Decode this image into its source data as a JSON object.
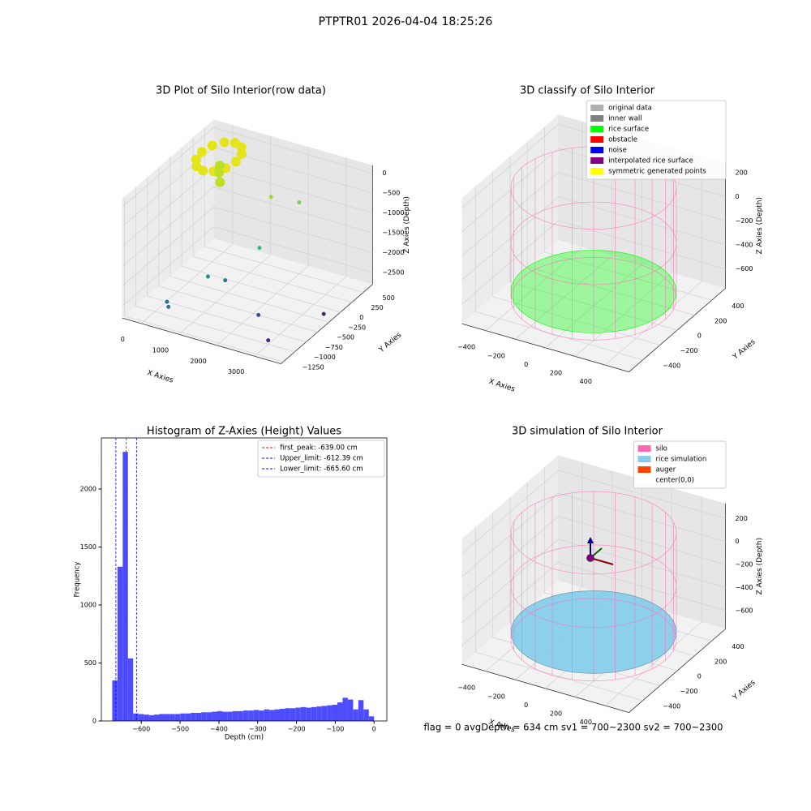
{
  "title": "PTPTR01 2026-04-04 18:25:26",
  "status_text": "flag = 0     avgDepth = 634 cm  sv1 = 700~2300  sv2 = 700~2300",
  "chart_data": [
    {
      "type": "scatter3d",
      "title": "3D Plot of Silo Interior(row data)",
      "xlabel": "X Axies",
      "ylabel": "Y Axies",
      "zlabel": "Z Axies (Depth)",
      "xlim": [
        -500,
        3700
      ],
      "ylim": [
        -1300,
        700
      ],
      "zlim": [
        -2800,
        200
      ],
      "xticks": [
        0,
        1000,
        2000,
        3000
      ],
      "yticks": [
        {
          "value": -1250,
          "label": "−1250"
        },
        {
          "value": -1000,
          "label": "−1000"
        },
        {
          "value": -750,
          "label": "−750"
        },
        {
          "value": -500,
          "label": "−500"
        },
        {
          "value": -250,
          "label": "−250"
        },
        0,
        250,
        500
      ],
      "zticks": [
        {
          "value": -2500,
          "label": "−2500"
        },
        {
          "value": -2000,
          "label": "−2000"
        },
        {
          "value": -1500,
          "label": "−1500"
        },
        {
          "value": -1000,
          "label": "−1000"
        },
        {
          "value": -500,
          "label": "−500"
        },
        0
      ],
      "x": [
        450,
        390,
        225,
        0,
        -225,
        -390,
        -450,
        -390,
        -225,
        0,
        225,
        390,
        0,
        150,
        -100,
        2000,
        1500,
        1800,
        800,
        1500,
        200,
        300,
        2500,
        3000,
        3500
      ],
      "y": [
        400,
        575,
        703,
        750,
        703,
        575,
        400,
        225,
        97,
        50,
        97,
        225,
        400,
        300,
        500,
        500,
        300,
        -200,
        -500,
        -700,
        -900,
        -950,
        -800,
        -1000,
        -200
      ],
      "z": [
        -300,
        -300,
        -300,
        -300,
        -300,
        -300,
        -300,
        -300,
        -300,
        -300,
        -300,
        -300,
        -700,
        -800,
        -650,
        -1000,
        -800,
        -1500,
        -2200,
        -1900,
        -2600,
        -2650,
        -2400,
        -2700,
        -2700
      ],
      "colors": [
        "#e5e419",
        "#e5e419",
        "#e5e419",
        "#e5e419",
        "#e5e419",
        "#e5e419",
        "#e5e419",
        "#e5e419",
        "#e5e419",
        "#e5e419",
        "#e5e419",
        "#e5e419",
        "#bddf26",
        "#bddf26",
        "#bddf26",
        "#7ad151",
        "#a0da39",
        "#35b779",
        "#21918c",
        "#2a788e",
        "#2c728e",
        "#2c728e",
        "#3b528b",
        "#472d7b",
        "#482878"
      ]
    },
    {
      "type": "silo3d",
      "title": "3D classify of Silo Interior",
      "xlabel": "X Axies",
      "ylabel": "Y Axies",
      "zlabel": "Z Axies (Depth)",
      "xlim": [
        -560,
        560
      ],
      "ylim": [
        -560,
        560
      ],
      "zlim": [
        -760,
        280
      ],
      "xticks": [
        {
          "value": -400,
          "label": "−400"
        },
        {
          "value": -200,
          "label": "−200"
        },
        0,
        200,
        400
      ],
      "yticks": [
        {
          "value": -400,
          "label": "−400"
        },
        {
          "value": -200,
          "label": "−200"
        },
        0,
        200,
        400
      ],
      "zticks": [
        {
          "value": -600,
          "label": "−600"
        },
        {
          "value": -400,
          "label": "−400"
        },
        {
          "value": -200,
          "label": "−200"
        },
        0,
        200
      ],
      "silo_radius": 480,
      "silo_z": [
        -700,
        220
      ],
      "rice_surface_z": -640,
      "surface_color": "#00ff00",
      "legend": "upper right",
      "series": [
        {
          "name": "original data",
          "color": "#b0b0b0"
        },
        {
          "name": "inner wall",
          "color": "#808080"
        },
        {
          "name": "rice surface",
          "color": "#00ff00"
        },
        {
          "name": "obstacle",
          "color": "#ff0000"
        },
        {
          "name": "noise",
          "color": "#0000ff"
        },
        {
          "name": "interpolated rice surface",
          "color": "#800080"
        },
        {
          "name": "symmetric generated points",
          "color": "#ffff00"
        }
      ]
    },
    {
      "type": "histogram",
      "title": "Histogram of Z-Axies (Height) Values",
      "xlabel": "Depth (cm)",
      "ylabel": "Frequency",
      "color": "#4d4dff",
      "xlim": [
        -703,
        33
      ],
      "ylim": [
        0,
        2440
      ],
      "xticks": [
        {
          "value": -600,
          "label": "−600"
        },
        {
          "value": -500,
          "label": "−500"
        },
        {
          "value": -400,
          "label": "−400"
        },
        {
          "value": -300,
          "label": "−300"
        },
        {
          "value": -200,
          "label": "−200"
        },
        {
          "value": -100,
          "label": "−100"
        },
        0
      ],
      "yticks": [
        0,
        500,
        1000,
        1500,
        2000
      ],
      "bins": [
        -675,
        -661.5,
        -648,
        -634.5,
        -621,
        -607.5,
        -594,
        -580.5,
        -567,
        -553.5,
        -540,
        -526.5,
        -513,
        -499.5,
        -486,
        -472.5,
        -459,
        -445.5,
        -432,
        -418.5,
        -405,
        -391.5,
        -378,
        -364.5,
        -351,
        -337.5,
        -324,
        -310.5,
        -297,
        -283.5,
        -270,
        -256.5,
        -243,
        -229.5,
        -216,
        -202.5,
        -189,
        -175.5,
        -162,
        -148.5,
        -135,
        -121.5,
        -108,
        -94.5,
        -81,
        -67.5,
        -54,
        -40.5,
        -27,
        -13.5,
        0
      ],
      "counts": [
        350,
        1330,
        2320,
        540,
        65,
        60,
        55,
        50,
        55,
        60,
        60,
        60,
        60,
        65,
        65,
        70,
        70,
        75,
        75,
        80,
        85,
        80,
        80,
        85,
        85,
        90,
        90,
        95,
        90,
        100,
        95,
        100,
        105,
        110,
        110,
        115,
        120,
        115,
        120,
        125,
        130,
        135,
        140,
        160,
        200,
        185,
        100,
        180,
        100,
        40
      ],
      "legend": "upper right",
      "vlines": [
        {
          "name": "first_peak: -639.00 cm",
          "value": -639,
          "color": "#ff0000"
        },
        {
          "name": "Upper_limit: -612.39 cm",
          "value": -612.39,
          "color": "#0000ff"
        },
        {
          "name": "Lower_limit: -665.60 cm",
          "value": -665.6,
          "color": "#0000ff"
        }
      ]
    },
    {
      "type": "silo3d",
      "title": "3D simulation of Silo Interior",
      "xlabel": "X Axies",
      "ylabel": "Y Axies",
      "zlabel": "Z Axies (Depth)",
      "xlim": [
        -560,
        560
      ],
      "ylim": [
        -560,
        560
      ],
      "zlim": [
        -760,
        330
      ],
      "xticks": [
        {
          "value": -400,
          "label": "−400"
        },
        {
          "value": -200,
          "label": "−200"
        },
        0,
        200,
        400
      ],
      "yticks": [
        {
          "value": -400,
          "label": "−400"
        },
        {
          "value": -200,
          "label": "−200"
        },
        0,
        200,
        400
      ],
      "zticks": [
        {
          "value": -600,
          "label": "−600"
        },
        {
          "value": -400,
          "label": "−400"
        },
        {
          "value": -200,
          "label": "−200"
        },
        0,
        200
      ],
      "silo_radius": 480,
      "silo_z": [
        -700,
        230
      ],
      "rice_surface_z": -634,
      "surface_color": "#87ceeb",
      "legend": "upper right",
      "series": [
        {
          "name": "silo",
          "color": "#ff69b4"
        },
        {
          "name": "rice simulation",
          "color": "#87ceeb"
        },
        {
          "name": "auger",
          "color": "#ff4500"
        },
        {
          "name": "center(0,0)",
          "color": "#ffffff"
        }
      ]
    }
  ]
}
